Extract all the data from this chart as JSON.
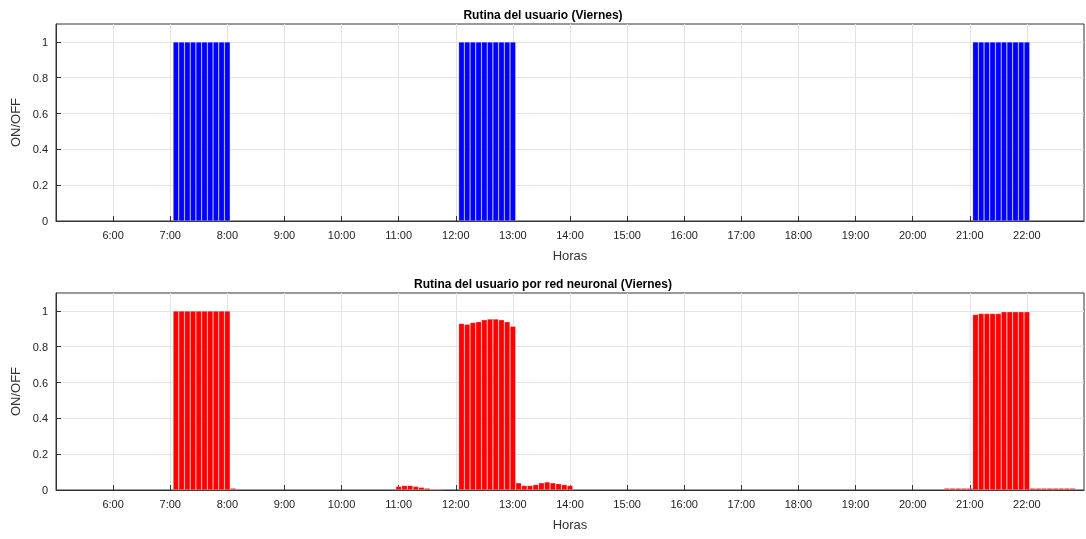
{
  "chart_data": [
    {
      "type": "bar",
      "title": "Rutina del usuario (Viernes)",
      "xlabel": "Horas",
      "ylabel": "ON/OFF",
      "grid": true,
      "xlim": [
        5,
        23
      ],
      "xticks": [
        {
          "value": 6,
          "label": "6:00"
        },
        {
          "value": 7,
          "label": "7:00"
        },
        {
          "value": 8,
          "label": "8:00"
        },
        {
          "value": 9,
          "label": "9:00"
        },
        {
          "value": 10,
          "label": "10:00"
        },
        {
          "value": 11,
          "label": "11:00"
        },
        {
          "value": 12,
          "label": "12:00"
        },
        {
          "value": 13,
          "label": "13:00"
        },
        {
          "value": 14,
          "label": "14:00"
        },
        {
          "value": 15,
          "label": "15:00"
        },
        {
          "value": 16,
          "label": "16:00"
        },
        {
          "value": 17,
          "label": "17:00"
        },
        {
          "value": 18,
          "label": "18:00"
        },
        {
          "value": 19,
          "label": "19:00"
        },
        {
          "value": 20,
          "label": "20:00"
        },
        {
          "value": 21,
          "label": "21:00"
        },
        {
          "value": 22,
          "label": "22:00"
        }
      ],
      "ylim": [
        0,
        1.1
      ],
      "yticks": [
        0,
        0.2,
        0.4,
        0.6,
        0.8,
        1
      ],
      "series": [
        {
          "color": "#0000ff",
          "x": [
            7.1,
            7.2,
            7.3,
            7.4,
            7.5,
            7.6,
            7.7,
            7.8,
            7.9,
            8.0,
            12.1,
            12.2,
            12.3,
            12.4,
            12.5,
            12.6,
            12.7,
            12.8,
            12.9,
            13.0,
            21.1,
            21.2,
            21.3,
            21.4,
            21.5,
            21.6,
            21.7,
            21.8,
            21.9,
            22.0
          ],
          "values": [
            1,
            1,
            1,
            1,
            1,
            1,
            1,
            1,
            1,
            1,
            1,
            1,
            1,
            1,
            1,
            1,
            1,
            1,
            1,
            1,
            1,
            1,
            1,
            1,
            1,
            1,
            1,
            1,
            1,
            1
          ]
        }
      ]
    },
    {
      "type": "bar",
      "title": "Rutina del usuario por red neuronal (Viernes)",
      "xlabel": "Horas",
      "ylabel": "ON/OFF",
      "grid": true,
      "xlim": [
        5,
        23
      ],
      "xticks": [
        {
          "value": 6,
          "label": "6:00"
        },
        {
          "value": 7,
          "label": "7:00"
        },
        {
          "value": 8,
          "label": "8:00"
        },
        {
          "value": 9,
          "label": "9:00"
        },
        {
          "value": 10,
          "label": "10:00"
        },
        {
          "value": 11,
          "label": "11:00"
        },
        {
          "value": 12,
          "label": "12:00"
        },
        {
          "value": 13,
          "label": "13:00"
        },
        {
          "value": 14,
          "label": "14:00"
        },
        {
          "value": 15,
          "label": "15:00"
        },
        {
          "value": 16,
          "label": "16:00"
        },
        {
          "value": 17,
          "label": "17:00"
        },
        {
          "value": 18,
          "label": "18:00"
        },
        {
          "value": 19,
          "label": "19:00"
        },
        {
          "value": 20,
          "label": "20:00"
        },
        {
          "value": 21,
          "label": "21:00"
        },
        {
          "value": 22,
          "label": "22:00"
        }
      ],
      "ylim": [
        0,
        1.1
      ],
      "yticks": [
        0,
        0.2,
        0.4,
        0.6,
        0.8,
        1
      ],
      "series": [
        {
          "color": "#ff0000",
          "x": [
            7.1,
            7.2,
            7.3,
            7.4,
            7.5,
            7.6,
            7.7,
            7.8,
            7.9,
            8.0,
            8.1,
            11.0,
            11.1,
            11.2,
            11.3,
            11.4,
            11.5,
            11.6,
            11.7,
            12.1,
            12.2,
            12.3,
            12.4,
            12.5,
            12.6,
            12.7,
            12.8,
            12.9,
            13.0,
            13.1,
            13.2,
            13.3,
            13.4,
            13.5,
            13.6,
            13.7,
            13.8,
            13.9,
            14.0,
            20.6,
            20.7,
            20.8,
            20.9,
            21.0,
            21.1,
            21.2,
            21.3,
            21.4,
            21.5,
            21.6,
            21.7,
            21.8,
            21.9,
            22.0,
            22.1,
            22.2,
            22.3,
            22.4,
            22.5,
            22.6,
            22.7,
            22.8
          ],
          "values": [
            1,
            1,
            1,
            1,
            1,
            1,
            1,
            1,
            1,
            1,
            0.01,
            0.02,
            0.025,
            0.025,
            0.02,
            0.015,
            0.01,
            0.005,
            0.005,
            0.93,
            0.925,
            0.935,
            0.94,
            0.95,
            0.955,
            0.955,
            0.95,
            0.94,
            0.915,
            0.04,
            0.025,
            0.025,
            0.03,
            0.04,
            0.045,
            0.04,
            0.035,
            0.03,
            0.025,
            0.01,
            0.01,
            0.01,
            0.01,
            0.01,
            0.98,
            0.985,
            0.985,
            0.985,
            0.985,
            0.995,
            0.995,
            0.995,
            0.995,
            0.995,
            0.01,
            0.01,
            0.01,
            0.01,
            0.01,
            0.01,
            0.01,
            0.01
          ]
        }
      ]
    }
  ]
}
